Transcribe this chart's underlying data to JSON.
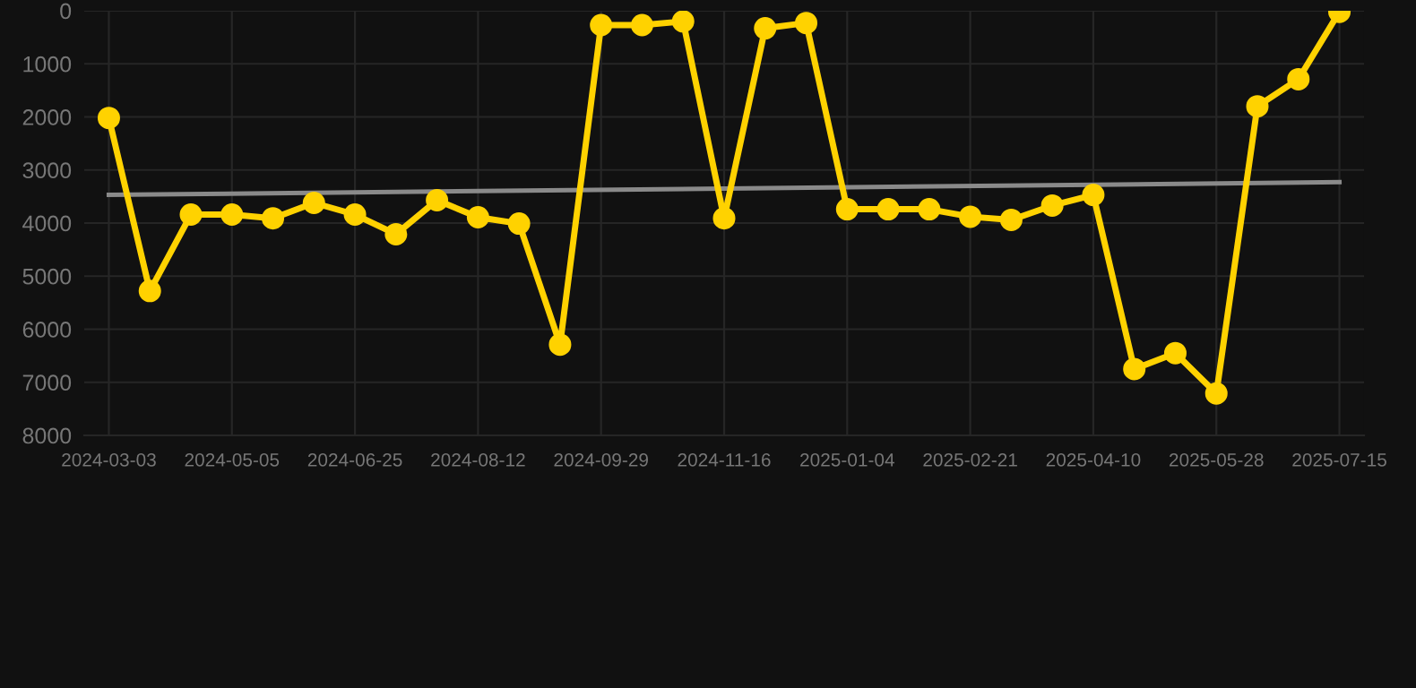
{
  "chart_data": {
    "type": "line",
    "categories": [
      "2024-03-03",
      null,
      null,
      "2024-05-05",
      null,
      null,
      "2024-06-25",
      null,
      null,
      "2024-08-12",
      null,
      null,
      "2024-09-29",
      null,
      null,
      "2024-11-16",
      null,
      null,
      "2025-01-04",
      null,
      null,
      "2025-02-21",
      null,
      null,
      "2025-04-10",
      null,
      null,
      "2025-05-28",
      null,
      null,
      "2025-07-15"
    ],
    "series": [
      {
        "color": "#ffd200",
        "marker": "circle",
        "values": [
          2020,
          5280,
          3840,
          3840,
          3910,
          3620,
          3840,
          4210,
          3570,
          3890,
          4010,
          6290,
          270,
          270,
          200,
          3910,
          330,
          230,
          3740,
          3740,
          3740,
          3880,
          3940,
          3670,
          3470,
          6750,
          6450,
          7210,
          1800,
          1290,
          20
        ]
      },
      {
        "type": "line",
        "color": "#8a8a8a",
        "marker": "none",
        "values": [
          3470,
          null,
          null,
          null,
          null,
          null,
          null,
          null,
          null,
          null,
          null,
          null,
          null,
          null,
          null,
          null,
          null,
          null,
          null,
          null,
          null,
          null,
          null,
          null,
          null,
          null,
          null,
          null,
          null,
          null,
          3230
        ]
      }
    ],
    "ylim": [
      8000,
      0
    ],
    "yticks": [
      0,
      1000,
      2000,
      3000,
      4000,
      5000,
      6000,
      7000,
      8000
    ],
    "grid": true,
    "line_style": "solid"
  }
}
